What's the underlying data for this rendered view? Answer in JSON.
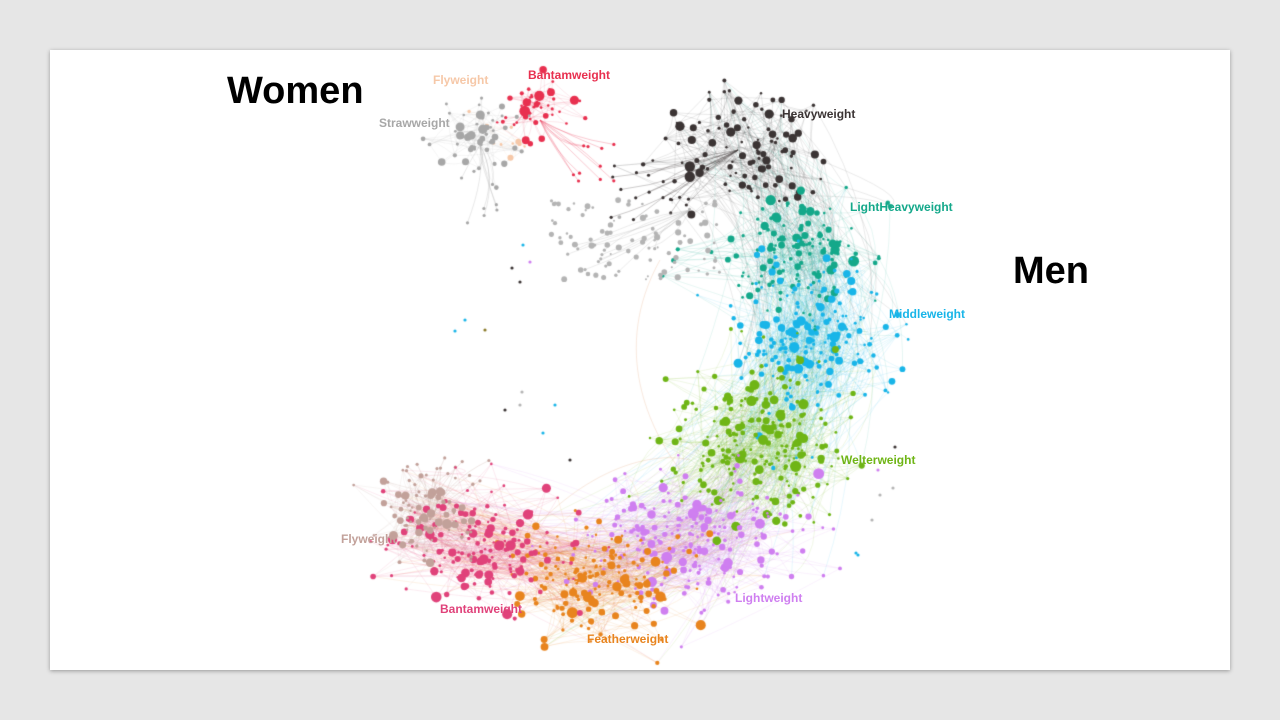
{
  "headings": {
    "women": "Women",
    "men": "Men"
  },
  "women": {
    "clusters": [
      {
        "key": "flyweight",
        "label": "Flyweight",
        "color": "#f6c8a8",
        "node_count": 10
      },
      {
        "key": "bantamweight",
        "label": "Bantamweight",
        "color": "#e8304f",
        "node_count": 45
      },
      {
        "key": "strawweight",
        "label": "Strawweight",
        "color": "#a7a7a7",
        "node_count": 55
      }
    ]
  },
  "men": {
    "clusters": [
      {
        "key": "heavyweight",
        "label": "Heavyweight",
        "color": "#3b3434",
        "node_count": 110
      },
      {
        "key": "light_heavyweight",
        "label": "LightHeavyweight",
        "color": "#14a88a",
        "node_count": 140
      },
      {
        "key": "middleweight",
        "label": "Middleweight",
        "color": "#19b5e8",
        "node_count": 200
      },
      {
        "key": "welterweight",
        "label": "Welterweight",
        "color": "#6fb516",
        "node_count": 230
      },
      {
        "key": "lightweight",
        "label": "Lightweight",
        "color": "#cf7ff0",
        "node_count": 230
      },
      {
        "key": "featherweight",
        "label": "Featherweight",
        "color": "#e8841e",
        "node_count": 170
      },
      {
        "key": "bantamweight",
        "label": "Bantamweight",
        "color": "#e0427a",
        "node_count": 150
      },
      {
        "key": "flyweight",
        "label": "Flyweight",
        "color": "#c2a19a",
        "node_count": 80
      }
    ]
  },
  "unassigned": {
    "color": "#b4b4b4",
    "node_count": 90
  }
}
